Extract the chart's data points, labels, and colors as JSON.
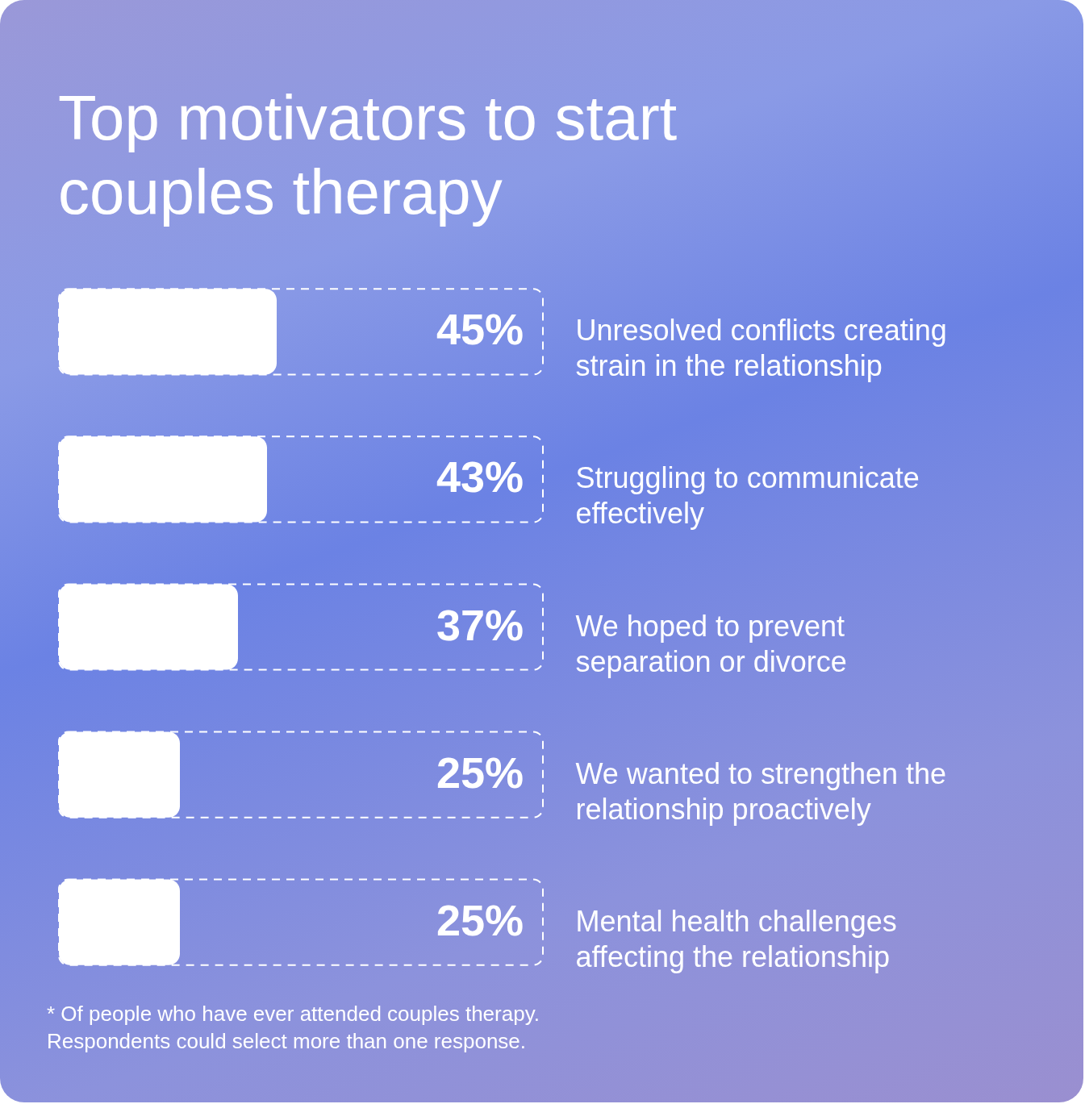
{
  "chart_data": {
    "type": "bar",
    "orientation": "horizontal",
    "title": "Top motivators to start couples therapy",
    "categories": [
      "Unresolved conflicts creating strain in the relationship",
      "Struggling to communicate effectively",
      "We hoped to prevent separation or divorce",
      "We wanted to strengthen the relationship proactively",
      "Mental health challenges affecting the relationship"
    ],
    "values": [
      45,
      43,
      37,
      25,
      25
    ],
    "value_labels": [
      "45%",
      "43%",
      "37%",
      "25%",
      "25%"
    ],
    "color": "#ffffff",
    "xlim": [
      0,
      100
    ],
    "annotations": [
      "* Of people who have ever attended couples therapy. Respondents could select more than one response."
    ]
  }
}
